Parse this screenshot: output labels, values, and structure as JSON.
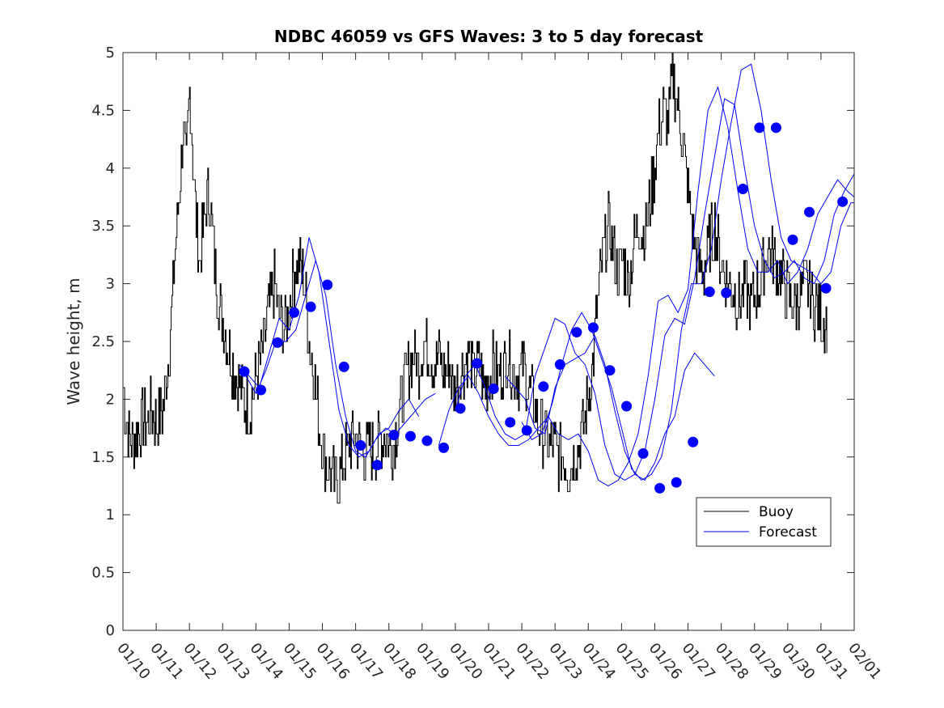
{
  "chart_data": {
    "type": "line",
    "title": "NDBC 46059 vs GFS Waves: 3 to 5 day forecast",
    "xlabel": "",
    "ylabel": "Wave height, m",
    "xlim": [
      "01/10",
      "02/01"
    ],
    "ylim": [
      0,
      5
    ],
    "x_ticks": [
      "01/10",
      "01/11",
      "01/12",
      "01/13",
      "01/14",
      "01/15",
      "01/16",
      "01/17",
      "01/18",
      "01/19",
      "01/20",
      "01/21",
      "01/22",
      "01/23",
      "01/24",
      "01/25",
      "01/26",
      "01/27",
      "01/28",
      "01/29",
      "01/30",
      "01/31",
      "02/01"
    ],
    "y_ticks": [
      "0",
      "0.5",
      "1",
      "1.5",
      "2",
      "2.5",
      "3",
      "3.5",
      "4",
      "4.5",
      "5"
    ],
    "grid": false,
    "legend": {
      "position": "bottom-right",
      "entries": [
        "Buoy",
        "Forecast"
      ]
    },
    "colors": {
      "buoy": "#000000",
      "forecast": "#0000ff",
      "markers": "#0000ff"
    },
    "series": [
      {
        "name": "Buoy",
        "style": "line",
        "x": [
          0.0,
          0.1,
          0.25,
          0.4,
          0.55,
          0.7,
          0.85,
          1.0,
          1.2,
          1.4,
          1.55,
          1.7,
          1.8,
          1.9,
          2.0,
          2.1,
          2.2,
          2.3,
          2.45,
          2.6,
          2.75,
          2.9,
          3.05,
          3.2,
          3.4,
          3.6,
          3.8,
          3.95,
          4.1,
          4.25,
          4.4,
          4.55,
          4.7,
          4.85,
          5.0,
          5.15,
          5.3,
          5.45,
          5.6,
          5.75,
          5.9,
          6.05,
          6.2,
          6.35,
          6.5,
          6.65,
          6.8,
          6.95,
          7.1,
          7.25,
          7.4,
          7.55,
          7.7,
          7.85,
          8.0,
          8.15,
          8.3,
          8.45,
          8.6,
          8.75,
          8.9,
          9.05,
          9.2,
          9.35,
          9.5,
          9.65,
          9.8,
          9.95,
          10.1,
          10.25,
          10.4,
          10.55,
          10.7,
          10.85,
          11.0,
          11.15,
          11.3,
          11.45,
          11.6,
          11.75,
          11.9,
          12.05,
          12.2,
          12.35,
          12.5,
          12.65,
          12.8,
          12.95,
          13.1,
          13.25,
          13.4,
          13.55,
          13.7,
          13.85,
          14.0,
          14.15,
          14.3,
          14.45,
          14.6,
          14.75,
          14.9,
          15.05,
          15.2,
          15.35,
          15.5,
          15.65,
          15.8,
          15.95,
          16.1,
          16.25,
          16.4,
          16.55,
          16.7,
          16.85,
          17.0,
          17.15,
          17.3,
          17.45,
          17.6,
          17.7,
          17.8,
          17.9,
          18.0,
          18.1,
          18.25,
          18.4,
          18.55,
          18.7,
          18.85,
          19.0,
          19.15,
          19.3,
          19.45,
          19.6,
          19.75,
          19.9,
          20.05,
          20.2,
          20.35,
          20.5,
          20.6,
          20.7,
          20.8,
          20.9,
          21.0,
          21.1,
          21.2
        ],
        "y": [
          2.1,
          1.8,
          1.6,
          1.7,
          1.8,
          1.8,
          1.9,
          1.8,
          1.9,
          2.5,
          3.2,
          3.8,
          4.3,
          4.0,
          4.7,
          4.1,
          3.5,
          3.2,
          3.6,
          3.8,
          3.2,
          2.8,
          2.6,
          2.4,
          2.2,
          2.0,
          1.9,
          2.1,
          2.3,
          2.5,
          2.8,
          3.0,
          2.7,
          2.6,
          2.8,
          3.1,
          3.2,
          3.0,
          2.5,
          2.2,
          1.8,
          1.5,
          1.4,
          1.3,
          1.3,
          1.5,
          1.6,
          1.7,
          1.6,
          1.5,
          1.6,
          1.5,
          1.6,
          1.7,
          1.6,
          1.6,
          1.9,
          2.1,
          2.3,
          2.4,
          2.3,
          2.5,
          2.4,
          2.3,
          2.4,
          2.2,
          2.3,
          2.1,
          2.2,
          2.3,
          2.4,
          2.2,
          2.3,
          2.1,
          2.2,
          2.3,
          2.2,
          2.3,
          2.4,
          2.2,
          2.2,
          2.3,
          2.1,
          2.0,
          1.8,
          1.7,
          1.6,
          1.6,
          1.5,
          1.5,
          1.4,
          1.5,
          1.6,
          1.8,
          2.0,
          2.4,
          2.9,
          3.3,
          3.5,
          3.3,
          3.1,
          3.2,
          3.0,
          3.3,
          3.5,
          3.4,
          3.6,
          3.9,
          4.3,
          4.5,
          4.4,
          4.8,
          4.5,
          4.2,
          3.8,
          3.4,
          3.2,
          3.1,
          3.3,
          3.4,
          3.5,
          3.3,
          3.2,
          3.1,
          3.0,
          2.9,
          2.8,
          3.0,
          2.8,
          2.9,
          3.0,
          3.2,
          3.3,
          3.2,
          3.1,
          3.0,
          2.9,
          2.8,
          2.9,
          3.0,
          3.0,
          2.9,
          2.8,
          2.8,
          2.7,
          2.7,
          2.7
        ],
        "noise": 0.28
      },
      {
        "name": "Forecast",
        "style": "thin-lines",
        "runs": [
          {
            "x": [
              3.5,
              3.8,
              4.1,
              4.4,
              4.7,
              5.0,
              5.3,
              5.6,
              5.9,
              6.2,
              6.5,
              6.8,
              7.1,
              7.4,
              7.7,
              8.0,
              8.3,
              8.6,
              8.9
            ],
            "y": [
              2.3,
              2.2,
              2.1,
              2.4,
              2.7,
              2.6,
              2.9,
              3.4,
              3.1,
              2.5,
              1.9,
              1.6,
              1.5,
              1.55,
              1.7,
              1.75,
              1.9,
              2.0,
              1.85
            ]
          },
          {
            "x": [
              3.7,
              4.0,
              4.3,
              4.6,
              4.9,
              5.2,
              5.5,
              5.8,
              6.1,
              6.4,
              6.7,
              7.0,
              7.3,
              7.6,
              7.9,
              8.2,
              8.5,
              8.8,
              9.1,
              9.4
            ],
            "y": [
              2.2,
              2.05,
              2.25,
              2.5,
              2.5,
              2.6,
              2.9,
              3.2,
              2.9,
              2.3,
              1.85,
              1.55,
              1.5,
              1.65,
              1.75,
              1.7,
              1.8,
              1.9,
              2.0,
              2.05
            ]
          },
          {
            "x": [
              9.5,
              9.8,
              10.1,
              10.4,
              10.7,
              11.0,
              11.3,
              11.6,
              11.9,
              12.2,
              12.5,
              12.8,
              13.1,
              13.4,
              13.7,
              14.0,
              14.3,
              14.6,
              14.9,
              15.2,
              15.5,
              15.8,
              16.1,
              16.4,
              16.7,
              17.0,
              17.3,
              17.6,
              17.9,
              18.2,
              18.5,
              18.8,
              19.1,
              19.4,
              19.7,
              20.0,
              20.3,
              20.6,
              20.9,
              21.2,
              21.5,
              21.8,
              22.0
            ],
            "y": [
              1.6,
              1.9,
              2.1,
              2.2,
              2.05,
              1.85,
              1.7,
              1.6,
              1.6,
              1.65,
              1.75,
              1.85,
              1.7,
              1.65,
              1.7,
              1.55,
              1.3,
              1.25,
              1.3,
              1.45,
              1.7,
              2.2,
              2.85,
              2.9,
              2.75,
              2.95,
              3.8,
              4.5,
              4.7,
              4.35,
              3.8,
              3.3,
              3.1,
              3.1,
              3.2,
              3.0,
              3.1,
              3.3,
              3.6,
              3.75,
              3.9,
              3.8,
              3.75
            ]
          },
          {
            "x": [
              10.0,
              10.3,
              10.6,
              10.9,
              11.2,
              11.5,
              11.8,
              12.1,
              12.4,
              12.7,
              13.0,
              13.3,
              13.6,
              13.9,
              14.2,
              14.5,
              14.8,
              15.1,
              15.4,
              15.7,
              16.0,
              16.3,
              16.6,
              16.9,
              17.2,
              17.5,
              17.8,
              18.1,
              18.4,
              18.7,
              19.0,
              19.3,
              19.6,
              19.9,
              20.2,
              20.5,
              20.8,
              21.1,
              21.4,
              21.7,
              22.0
            ],
            "y": [
              1.9,
              2.2,
              2.3,
              2.1,
              1.85,
              1.7,
              1.65,
              1.7,
              2.2,
              2.45,
              2.7,
              2.65,
              2.4,
              2.3,
              2.05,
              1.6,
              1.35,
              1.3,
              1.35,
              1.55,
              2.0,
              2.55,
              2.7,
              2.65,
              3.05,
              3.6,
              4.1,
              4.6,
              4.55,
              4.0,
              3.5,
              3.2,
              3.05,
              3.1,
              3.2,
              3.05,
              3.0,
              3.2,
              3.6,
              3.8,
              3.95
            ]
          },
          {
            "x": [
              11.5,
              11.8,
              12.1,
              12.4,
              12.7,
              13.0,
              13.3,
              13.6,
              13.9,
              14.2,
              14.5,
              14.8,
              15.1,
              15.4,
              15.7,
              16.0,
              16.3,
              16.6,
              16.9,
              17.2,
              17.5,
              17.8
            ],
            "y": [
              2.2,
              2.1,
              2.0,
              1.75,
              1.7,
              2.1,
              2.3,
              2.35,
              2.4,
              2.55,
              2.3,
              1.9,
              1.55,
              1.35,
              1.3,
              1.45,
              1.7,
              1.85,
              2.25,
              2.4,
              2.3,
              2.2
            ]
          },
          {
            "x": [
              12.0,
              12.3,
              12.6,
              12.9,
              13.2,
              13.5,
              13.8,
              14.1,
              14.4,
              14.7,
              15.0,
              15.3,
              15.6,
              15.9,
              16.2,
              16.5,
              16.8,
              17.1,
              17.4,
              17.7,
              18.0,
              18.3,
              18.6,
              18.9,
              19.2,
              19.5,
              19.8,
              20.1,
              20.4,
              20.7,
              21.0,
              21.3,
              21.6,
              21.9,
              22.0
            ],
            "y": [
              1.8,
              1.65,
              1.7,
              1.95,
              2.3,
              2.6,
              2.75,
              2.6,
              2.35,
              2.1,
              1.75,
              1.4,
              1.3,
              1.35,
              1.5,
              1.9,
              2.6,
              3.0,
              3.0,
              3.3,
              3.9,
              4.4,
              4.85,
              4.9,
              4.5,
              3.9,
              3.4,
              3.2,
              3.15,
              3.1,
              3.0,
              3.1,
              3.5,
              3.7,
              3.7
            ]
          }
        ]
      },
      {
        "name": "",
        "style": "markers",
        "x": [
          3.65,
          4.15,
          4.65,
          5.15,
          5.65,
          6.15,
          6.65,
          7.15,
          7.65,
          8.15,
          8.65,
          9.15,
          9.65,
          10.15,
          10.65,
          11.15,
          11.65,
          12.15,
          12.65,
          13.15,
          13.65,
          14.15,
          14.65,
          15.15,
          15.65,
          16.15,
          16.65,
          17.15,
          17.65,
          18.15,
          18.65,
          19.15,
          19.65,
          20.15,
          20.65,
          21.15
        ],
        "y": [
          2.24,
          2.08,
          2.49,
          2.75,
          2.8,
          2.99,
          2.28,
          1.6,
          1.43,
          1.69,
          1.68,
          1.64,
          1.58,
          1.92,
          2.31,
          2.09,
          1.8,
          1.73,
          2.11,
          2.3,
          2.58,
          2.62,
          2.25,
          1.94,
          1.53,
          1.23,
          1.28,
          1.63,
          2.93,
          2.92,
          3.82,
          4.35,
          4.35,
          3.38,
          3.62,
          2.96
        ]
      }
    ],
    "extra_markers": [
      {
        "x": 21.65,
        "y": 3.71
      }
    ]
  }
}
